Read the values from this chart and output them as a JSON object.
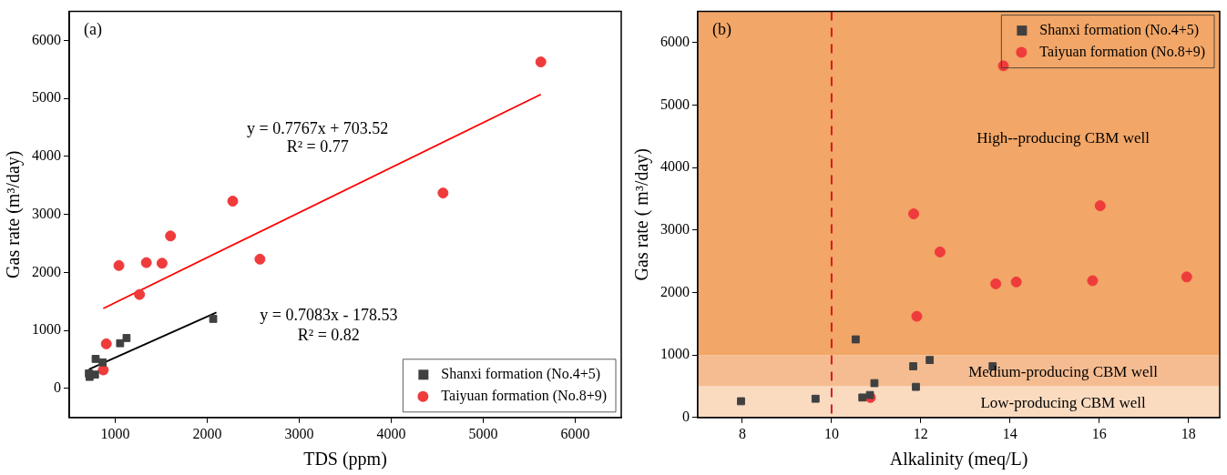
{
  "chart_data": [
    {
      "type": "scatter",
      "xlabel": "TDS (ppm)",
      "ylabel": "Gas rate (m³/day)",
      "xlim": [
        500,
        6500
      ],
      "xticks": [
        1000,
        2000,
        3000,
        4000,
        5000,
        6000
      ],
      "ylim": [
        -500,
        6500
      ],
      "yticks": [
        0,
        1000,
        2000,
        3000,
        4000,
        5000,
        6000
      ],
      "legend": "bottom right",
      "annotations": [
        "(a)",
        "y = 0.7767x + 703.52",
        "R² = 0.77",
        "y = 0.7083x - 178.53",
        "R² = 0.82"
      ],
      "series": [
        {
          "name": "Shanxi formation (No.4+5)",
          "color": "#404040",
          "marker": "square",
          "x": [
            2065,
            1123,
            1053,
            787,
            863,
            714,
            721,
            780
          ],
          "values": [
            1200,
            870,
            780,
            510,
            450,
            260,
            200,
            240
          ]
        },
        {
          "name": "Taiyuan formation (No.8+9)",
          "color": "#ef3b3b",
          "marker": "circle",
          "x": [
            5626,
            4563,
            2277,
            2573,
            1601,
            1338,
            1509,
            1040,
            1264,
            903,
            870
          ],
          "values": [
            5630,
            3370,
            3230,
            2230,
            2630,
            2170,
            2160,
            2120,
            1620,
            770,
            320
          ]
        },
        {
          "type": "line",
          "color": "#000000",
          "x": [
            714,
            2100
          ],
          "values": [
            330,
            1310
          ]
        },
        {
          "type": "line",
          "color": "#ff0000",
          "x": [
            870,
            5626
          ],
          "values": [
            1380,
            5070
          ]
        }
      ]
    },
    {
      "type": "scatter",
      "xlabel": "Alkalinity (meq/L)",
      "ylabel": "Gas rate ( m³/day)",
      "xlim": [
        7,
        18.7
      ],
      "xticks": [
        8,
        10,
        12,
        14,
        16,
        18
      ],
      "ylim": [
        0,
        6500
      ],
      "yticks": [
        0,
        1000,
        2000,
        3000,
        4000,
        5000,
        6000
      ],
      "legend": "top right",
      "annotations": [
        "(b)"
      ],
      "bands": [
        {
          "axis": "y",
          "from": 0,
          "to": 500,
          "label": "Low-producing CBM well",
          "color": "#fadbc0"
        },
        {
          "axis": "y",
          "from": 500,
          "to": 1000,
          "label": "Medium-producing CBM well",
          "color": "#f5bc91"
        },
        {
          "axis": "y",
          "from": 1000,
          "to": 6500,
          "label": "High--producing CBM well",
          "color": "#f2a667"
        }
      ],
      "ref_lines": [
        {
          "axis": "x",
          "value": 10,
          "color": "#d7191c",
          "line_style": "dashed"
        }
      ],
      "series": [
        {
          "name": "Shanxi formation (No.4+5)",
          "color": "#404040",
          "marker": "square",
          "x": [
            7.97,
            9.64,
            10.54,
            10.69,
            10.86,
            10.96,
            11.83,
            11.89,
            12.2,
            13.61
          ],
          "values": [
            260,
            300,
            1250,
            320,
            360,
            550,
            820,
            490,
            920,
            820
          ]
        },
        {
          "name": "Taiyuan formation (No.8+9)",
          "color": "#ef3b3b",
          "marker": "circle",
          "x": [
            13.85,
            11.84,
            16.02,
            12.43,
            13.68,
            14.14,
            15.85,
            17.96,
            11.91,
            10.87
          ],
          "values": [
            5630,
            3260,
            3390,
            2650,
            2140,
            2170,
            2190,
            2250,
            1620,
            320
          ]
        }
      ]
    }
  ]
}
